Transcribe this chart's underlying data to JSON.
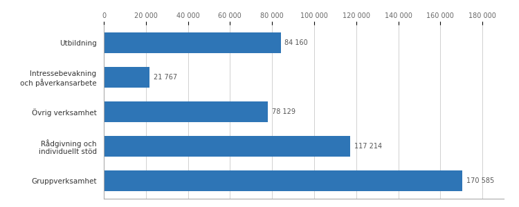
{
  "categories": [
    "Gruppverksamhet",
    "Rådgivning och\nindividuellt stöd",
    "Övrig verksamhet",
    "Intressebevakning\noch påverkansarbete",
    "Utbildning"
  ],
  "values": [
    170585,
    117214,
    78129,
    21767,
    84160
  ],
  "bar_color": "#2E75B6",
  "value_labels": [
    "170 585",
    "117 214",
    "78 129",
    "21 767",
    "84 160"
  ],
  "xlim": [
    0,
    190000
  ],
  "xticks": [
    0,
    20000,
    40000,
    60000,
    80000,
    100000,
    120000,
    140000,
    160000,
    180000
  ],
  "xtick_labels": [
    "0",
    "20 000",
    "40 000",
    "60 000",
    "80 000",
    "100 000",
    "120 000",
    "140 000",
    "160 000",
    "180 000"
  ],
  "background_color": "#ffffff",
  "grid_color": "#d0d0d0",
  "label_fontsize": 7.5,
  "tick_fontsize": 7,
  "value_fontsize": 7
}
